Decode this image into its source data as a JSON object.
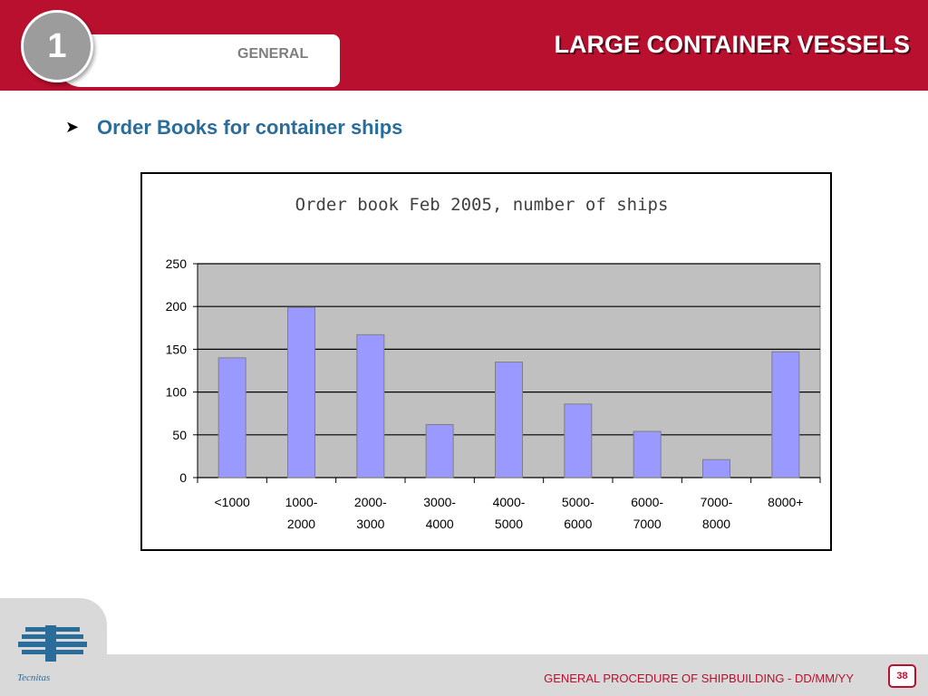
{
  "header": {
    "section_number": "1",
    "section_label": "GENERAL",
    "title": "LARGE CONTAINER VESSELS"
  },
  "content": {
    "bullet_icon": "arrow-bullet-icon",
    "subtitle": "Order Books for container ships"
  },
  "footer": {
    "logo_text": "Tecnitas",
    "text": "GENERAL PROCEDURE OF SHIPBUILDING  - DD/MM/YY",
    "page_number": "38"
  },
  "colors": {
    "header_red": "#b8102e",
    "bar_fill": "#9999ff",
    "plot_bg": "#c0c0c0",
    "subtitle_blue": "#2a6d9a"
  },
  "chart_data": {
    "type": "bar",
    "title": "Order book Feb 2005, number of ships",
    "categories": [
      "<1000",
      "1000-2000",
      "2000-3000",
      "3000-4000",
      "4000-5000",
      "5000-6000",
      "6000-7000",
      "7000-8000",
      "8000+"
    ],
    "category_lines": [
      [
        "<1000"
      ],
      [
        "1000-",
        "2000"
      ],
      [
        "2000-",
        "3000"
      ],
      [
        "3000-",
        "4000"
      ],
      [
        "4000-",
        "5000"
      ],
      [
        "5000-",
        "6000"
      ],
      [
        "6000-",
        "7000"
      ],
      [
        "7000-",
        "8000"
      ],
      [
        "8000+"
      ]
    ],
    "values": [
      140,
      199,
      167,
      62,
      135,
      86,
      54,
      21,
      147
    ],
    "yticks": [
      0,
      50,
      100,
      150,
      200,
      250
    ],
    "ylim": [
      0,
      250
    ],
    "xlabel": "",
    "ylabel": "",
    "grid": true,
    "legend": "none"
  }
}
